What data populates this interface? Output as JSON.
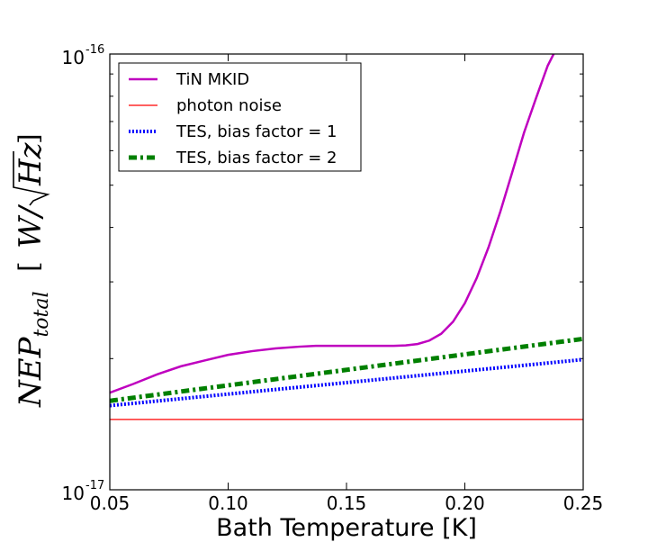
{
  "chart_data": {
    "type": "line",
    "title": "",
    "xlabel": "Bath Temperature [K]",
    "ylabel": {
      "main": "NEP",
      "subscript": "total",
      "units_open": "[",
      "units": "W/",
      "units_radicand": "Hz",
      "units_close": "]"
    },
    "xlim": [
      0.05,
      0.25
    ],
    "ylim": [
      1e-17,
      1e-16
    ],
    "yscale": "log",
    "xticks": [
      {
        "value": 0.05,
        "label": "0.05"
      },
      {
        "value": 0.1,
        "label": "0.10"
      },
      {
        "value": 0.15,
        "label": "0.15"
      },
      {
        "value": 0.2,
        "label": "0.20"
      },
      {
        "value": 0.25,
        "label": "0.25"
      }
    ],
    "yticks": [
      {
        "value": 1e-16,
        "base": "10",
        "exponent": "-16"
      },
      {
        "value": 1e-17,
        "base": "10",
        "exponent": "-17"
      }
    ],
    "legend_position": "top-left",
    "series": [
      {
        "name": "TiN MKID",
        "color": "#bf00bf",
        "style": "solid",
        "x": [
          0.05,
          0.06,
          0.07,
          0.08,
          0.09,
          0.1,
          0.11,
          0.12,
          0.13,
          0.137,
          0.15,
          0.16,
          0.17,
          0.175,
          0.18,
          0.185,
          0.19,
          0.195,
          0.2,
          0.205,
          0.21,
          0.215,
          0.22,
          0.225,
          0.23,
          0.235,
          0.2375
        ],
        "y": [
          1.67e-17,
          1.75e-17,
          1.84e-17,
          1.92e-17,
          1.98e-17,
          2.04e-17,
          2.08e-17,
          2.11e-17,
          2.13e-17,
          2.14e-17,
          2.14e-17,
          2.14e-17,
          2.14e-17,
          2.145e-17,
          2.16e-17,
          2.2e-17,
          2.28e-17,
          2.43e-17,
          2.68e-17,
          3.06e-17,
          3.6e-17,
          4.35e-17,
          5.35e-17,
          6.6e-17,
          7.9e-17,
          9.4e-17,
          1e-16
        ]
      },
      {
        "name": "photon noise",
        "color": "#ff0000",
        "style": "solid",
        "x": [
          0.05,
          0.25
        ],
        "y": [
          1.45e-17,
          1.45e-17
        ]
      },
      {
        "name": "TES, bias factor = 1",
        "color": "#0000ff",
        "style": "dotted",
        "x": [
          0.05,
          0.25
        ],
        "y": [
          1.56e-17,
          1.99e-17
        ]
      },
      {
        "name": "TES, bias factor = 2",
        "color": "#008000",
        "style": "dashdot",
        "x": [
          0.05,
          0.25
        ],
        "y": [
          1.6e-17,
          2.22e-17
        ]
      }
    ]
  }
}
